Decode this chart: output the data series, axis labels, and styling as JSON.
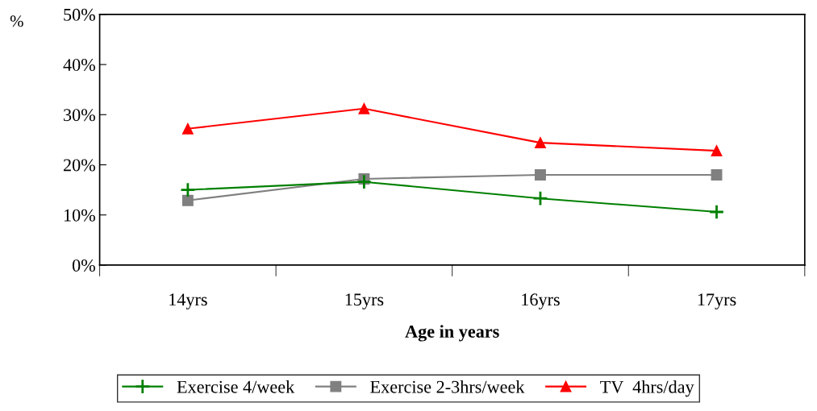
{
  "chart_data": {
    "type": "line",
    "xlabel": "Age in years",
    "ylabel": "%",
    "categories": [
      "14yrs",
      "15yrs",
      "16yrs",
      "17yrs"
    ],
    "series": [
      {
        "name": "Exercise 4/week",
        "color": "#008000",
        "marker": "cross",
        "values": [
          15.0,
          16.6,
          13.3,
          10.6
        ]
      },
      {
        "name": "Exercise 2-3hrs/week",
        "color": "#808080",
        "marker": "square",
        "values": [
          12.9,
          17.2,
          18.0,
          18.0
        ]
      },
      {
        "name": "TV  4hrs/day",
        "color": "#ff0000",
        "marker": "triangle",
        "values": [
          27.2,
          31.2,
          24.4,
          22.8
        ]
      }
    ],
    "ylim": [
      0,
      50
    ],
    "yticks": [
      {
        "value": 0,
        "label": "0%"
      },
      {
        "value": 10,
        "label": "10%"
      },
      {
        "value": 20,
        "label": "20%"
      },
      {
        "value": 30,
        "label": "30%"
      },
      {
        "value": 40,
        "label": "40%"
      },
      {
        "value": 50,
        "label": "50%"
      }
    ],
    "grid": false,
    "legend": "bottom"
  }
}
